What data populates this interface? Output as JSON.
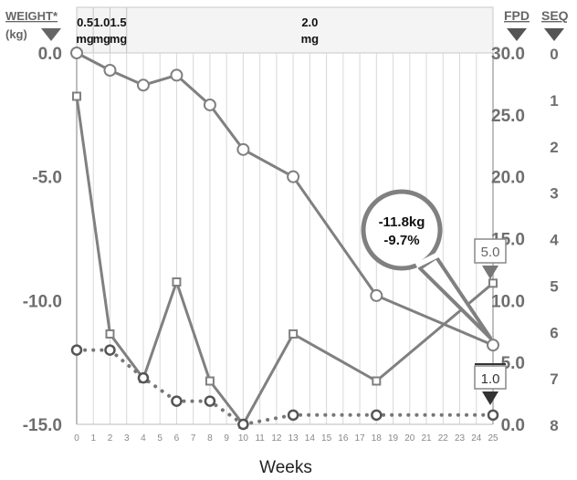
{
  "chart_data": {
    "type": "line",
    "xlabel": "Weeks",
    "x_ticks": [
      0,
      1,
      2,
      3,
      4,
      5,
      6,
      7,
      8,
      9,
      10,
      11,
      12,
      13,
      14,
      15,
      16,
      17,
      18,
      19,
      20,
      21,
      22,
      23,
      24,
      25
    ],
    "x_range": [
      0,
      25
    ],
    "axes": {
      "weight": {
        "label_line1": "WEIGHT*",
        "label_line2": "(kg)",
        "range": [
          -15,
          0
        ],
        "ticks": [
          "0.0",
          "-5.0",
          "-10.0",
          "-15.0"
        ]
      },
      "fpd": {
        "label": "FPD",
        "range": [
          0,
          30
        ],
        "ticks": [
          "30.0",
          "25.0",
          "20.0",
          "15.0",
          "10.0",
          "5.0",
          "0.0"
        ]
      },
      "seq": {
        "label": "SEQ",
        "range": [
          0,
          8
        ],
        "ticks": [
          "0",
          "1",
          "2",
          "3",
          "4",
          "5",
          "6",
          "7",
          "8"
        ]
      }
    },
    "dose_bands": [
      {
        "from": 0,
        "to": 1,
        "line1": "0.5",
        "line2": "mg"
      },
      {
        "from": 1,
        "to": 2,
        "line1": "1.0",
        "line2": "mg"
      },
      {
        "from": 2,
        "to": 3,
        "line1": "1.5",
        "line2": "mg"
      },
      {
        "from": 3,
        "to": 25,
        "line1": "2.0",
        "line2": "mg"
      }
    ],
    "series": [
      {
        "key": "weight",
        "axis": "weight",
        "marker": "circle",
        "style": "solid",
        "x": [
          0,
          2,
          4,
          6,
          8,
          10,
          13,
          18,
          25
        ],
        "y": [
          0.0,
          -0.7,
          -1.3,
          -0.9,
          -2.1,
          -3.9,
          -5.0,
          -9.8,
          -11.8
        ]
      },
      {
        "key": "fpd",
        "axis": "fpd",
        "marker": "square",
        "style": "solid",
        "x": [
          0,
          2,
          4,
          6,
          8,
          10,
          13,
          18,
          25
        ],
        "y": [
          26.5,
          7.3,
          3.7,
          11.5,
          3.5,
          0.0,
          7.3,
          3.5,
          11.4
        ]
      },
      {
        "key": "seq",
        "axis": "seq",
        "marker": "circle",
        "style": "dotted",
        "x": [
          0,
          2,
          4,
          6,
          8,
          10,
          13,
          18,
          25
        ],
        "y": [
          6.4,
          6.4,
          7.0,
          7.5,
          7.5,
          8.0,
          7.8,
          7.8,
          7.8
        ]
      }
    ],
    "annotations": {
      "bubble_line1": "-11.8kg",
      "bubble_line2": "-9.7%",
      "fpd_final_marker": "5.0",
      "seq_final_marker": "1.0"
    },
    "grid": "vertical"
  }
}
